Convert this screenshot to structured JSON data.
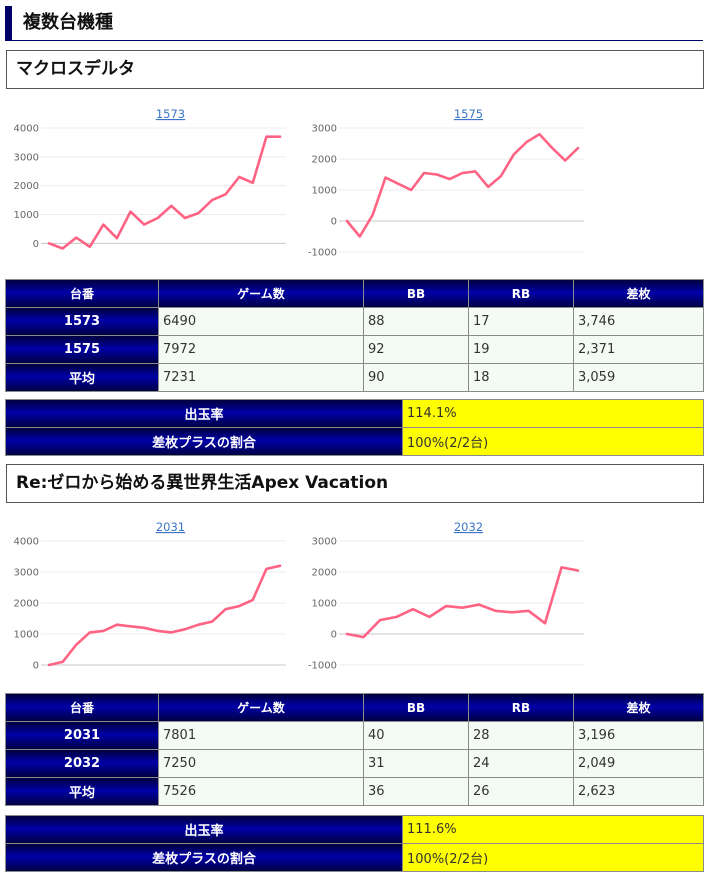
{
  "page_title": "複数台機種",
  "table_headers": [
    "台番",
    "ゲーム数",
    "BB",
    "RB",
    "差枚"
  ],
  "summary_labels": {
    "payout": "出玉率",
    "plus_ratio": "差枚プラスの割合"
  },
  "machines": [
    {
      "title": "マクロスデルタ",
      "units": [
        {
          "no": "1573",
          "games": "6490",
          "bb": "88",
          "rb": "17",
          "diff": "3,746"
        },
        {
          "no": "1575",
          "games": "7972",
          "bb": "92",
          "rb": "19",
          "diff": "2,371"
        }
      ],
      "average": {
        "label": "平均",
        "games": "7231",
        "bb": "90",
        "rb": "18",
        "diff": "3,059"
      },
      "payout": "114.1%",
      "plus_ratio": "100%(2/2台)"
    },
    {
      "title": "Re:ゼロから始める異世界生活Apex Vacation",
      "units": [
        {
          "no": "2031",
          "games": "7801",
          "bb": "40",
          "rb": "28",
          "diff": "3,196"
        },
        {
          "no": "2032",
          "games": "7250",
          "bb": "31",
          "rb": "24",
          "diff": "2,049"
        }
      ],
      "average": {
        "label": "平均",
        "games": "7526",
        "bb": "36",
        "rb": "26",
        "diff": "2,623"
      },
      "payout": "111.6%",
      "plus_ratio": "100%(2/2台)"
    }
  ],
  "chart_data": [
    {
      "type": "line",
      "title": "1573",
      "color": "#ff6384",
      "ylim": [
        -300,
        4000
      ],
      "yticks": [
        0,
        1000,
        2000,
        3000,
        4000
      ],
      "values": [
        0,
        -180,
        200,
        -120,
        650,
        180,
        1100,
        650,
        880,
        1300,
        880,
        1050,
        1500,
        1700,
        2300,
        2100,
        3700,
        3700
      ]
    },
    {
      "type": "line",
      "title": "1575",
      "color": "#ff6384",
      "ylim": [
        -1000,
        3000
      ],
      "yticks": [
        -1000,
        0,
        1000,
        2000,
        3000
      ],
      "values": [
        0,
        -500,
        200,
        1400,
        1200,
        1000,
        1550,
        1500,
        1350,
        1550,
        1600,
        1100,
        1450,
        2150,
        2550,
        2800,
        2350,
        1950,
        2350
      ]
    },
    {
      "type": "line",
      "title": "2031",
      "color": "#ff6384",
      "ylim": [
        0,
        4000
      ],
      "yticks": [
        0,
        1000,
        2000,
        3000,
        4000
      ],
      "values": [
        0,
        100,
        650,
        1050,
        1100,
        1300,
        1250,
        1200,
        1100,
        1050,
        1150,
        1300,
        1400,
        1800,
        1900,
        2100,
        3100,
        3200
      ]
    },
    {
      "type": "line",
      "title": "2032",
      "color": "#ff6384",
      "ylim": [
        -1000,
        3000
      ],
      "yticks": [
        -1000,
        0,
        1000,
        2000,
        3000
      ],
      "values": [
        0,
        -100,
        450,
        550,
        800,
        550,
        900,
        850,
        950,
        750,
        700,
        750,
        350,
        2150,
        2050
      ]
    }
  ]
}
